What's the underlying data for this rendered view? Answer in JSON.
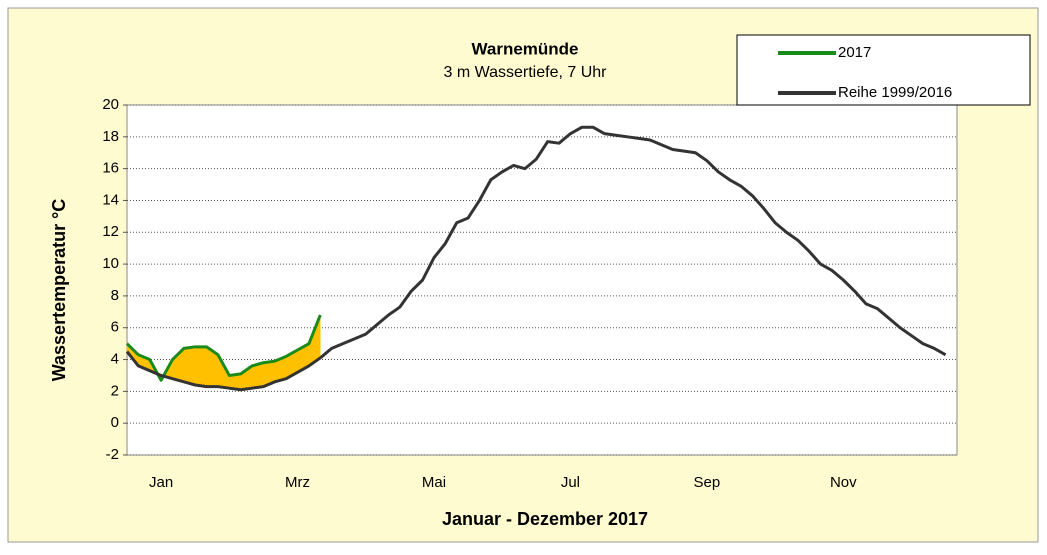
{
  "chart_data": {
    "type": "line",
    "title": "Warnemünde",
    "subtitle": "3 m Wassertiefe, 7 Uhr",
    "x_label": "Januar - Dezember 2017",
    "y_label": "Wassertemperatur °C",
    "categories": [
      null,
      null,
      null,
      "Jan",
      null,
      null,
      null,
      null,
      null,
      null,
      null,
      null,
      null,
      null,
      null,
      "Mrz",
      null,
      null,
      null,
      null,
      null,
      null,
      null,
      null,
      null,
      null,
      null,
      "Mai",
      null,
      null,
      null,
      null,
      null,
      null,
      null,
      null,
      null,
      null,
      null,
      "Jul",
      null,
      null,
      null,
      null,
      null,
      null,
      null,
      null,
      null,
      null,
      null,
      "Sep",
      null,
      null,
      null,
      null,
      null,
      null,
      null,
      null,
      null,
      null,
      null,
      "Nov",
      null,
      null,
      null,
      null,
      null,
      null,
      null,
      null,
      null
    ],
    "series": [
      {
        "name": "2017",
        "color": "#1a8a1a",
        "values": [
          5.0,
          4.3,
          4.0,
          2.7,
          4.0,
          4.7,
          4.8,
          4.8,
          4.3,
          3.0,
          3.1,
          3.6,
          3.8,
          3.9,
          4.2,
          4.6,
          5.0,
          6.8,
          null,
          null,
          null,
          null,
          null,
          null,
          null,
          null,
          null,
          null,
          null,
          null,
          null,
          null,
          null,
          null,
          null,
          null,
          null,
          null,
          null,
          null,
          null,
          null,
          null,
          null,
          null,
          null,
          null,
          null,
          null,
          null,
          null,
          null,
          null,
          null,
          null,
          null,
          null,
          null,
          null,
          null,
          null,
          null,
          null,
          null,
          null,
          null,
          null,
          null,
          null,
          null,
          null,
          null,
          null
        ]
      },
      {
        "name": "Reihe 1999/2016",
        "color": "#333333",
        "values": [
          4.5,
          3.6,
          3.3,
          3.0,
          2.8,
          2.6,
          2.4,
          2.3,
          2.3,
          2.2,
          2.1,
          2.2,
          2.3,
          2.6,
          2.8,
          3.2,
          3.6,
          4.1,
          4.7,
          5.0,
          5.3,
          5.6,
          6.2,
          6.8,
          7.3,
          8.3,
          9.0,
          10.4,
          11.3,
          12.6,
          12.9,
          14.0,
          15.3,
          15.8,
          16.2,
          16.0,
          16.6,
          17.7,
          17.6,
          18.2,
          18.6,
          18.6,
          18.2,
          18.1,
          18.0,
          17.9,
          17.8,
          17.5,
          17.2,
          17.1,
          17.0,
          16.5,
          15.8,
          15.3,
          14.9,
          14.3,
          13.5,
          12.6,
          12.0,
          11.5,
          10.8,
          10.0,
          9.6,
          9.0,
          8.3,
          7.5,
          7.2,
          6.6,
          6.0,
          5.5,
          5.0,
          4.7,
          4.3
        ]
      }
    ],
    "above_color": "#ffc000",
    "below_color": "#2ea6d6",
    "ylim": [
      -2,
      20
    ],
    "yticks": [
      -2,
      0,
      2,
      4,
      6,
      8,
      10,
      12,
      14,
      16,
      18,
      20
    ],
    "grid": true,
    "legend": "top-right"
  }
}
